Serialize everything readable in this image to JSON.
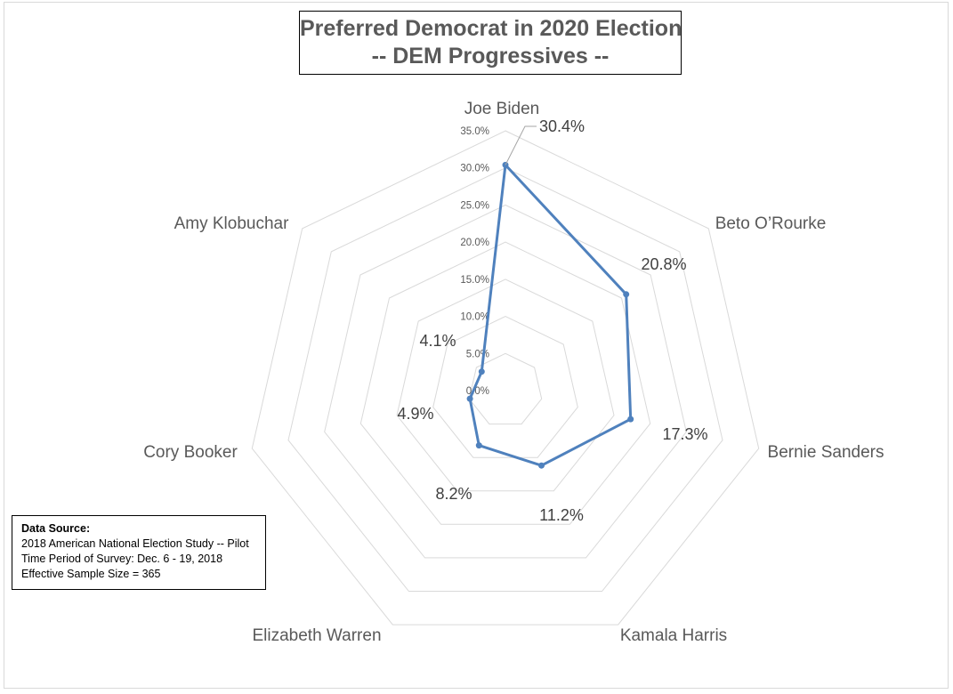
{
  "chart_title": {
    "line1": "Preferred Democrat in 2020 Election",
    "line2": "-- DEM Progressives --"
  },
  "source": {
    "heading": "Data Source:",
    "line1": "2018 American National Election Study -- Pilot",
    "line2": "Time Period of Survey: Dec. 6 - 19, 2018",
    "line3": "Effective Sample Size = 365"
  },
  "colors": {
    "series": "#4f81bd",
    "grid": "#d9d9d9",
    "text": "#595959"
  },
  "chart_data": {
    "type": "radar",
    "title": "Preferred Democrat in 2020 Election -- DEM Progressives --",
    "categories": [
      "Joe Biden",
      "Beto O’Rourke",
      "Bernie Sanders",
      "Kamala Harris",
      "Elizabeth Warren",
      "Cory Booker",
      "Amy Klobuchar"
    ],
    "values": [
      30.4,
      20.8,
      17.3,
      11.2,
      8.2,
      4.9,
      4.1
    ],
    "value_labels": [
      "30.4%",
      "20.8%",
      "17.3%",
      "11.2%",
      "8.2%",
      "4.9%",
      "4.1%"
    ],
    "r_ticks": [
      "0.0%",
      "5.0%",
      "10.0%",
      "15.0%",
      "20.0%",
      "25.0%",
      "30.0%",
      "35.0%"
    ],
    "r_range": [
      0,
      35
    ],
    "grid": true,
    "legend": "none"
  }
}
